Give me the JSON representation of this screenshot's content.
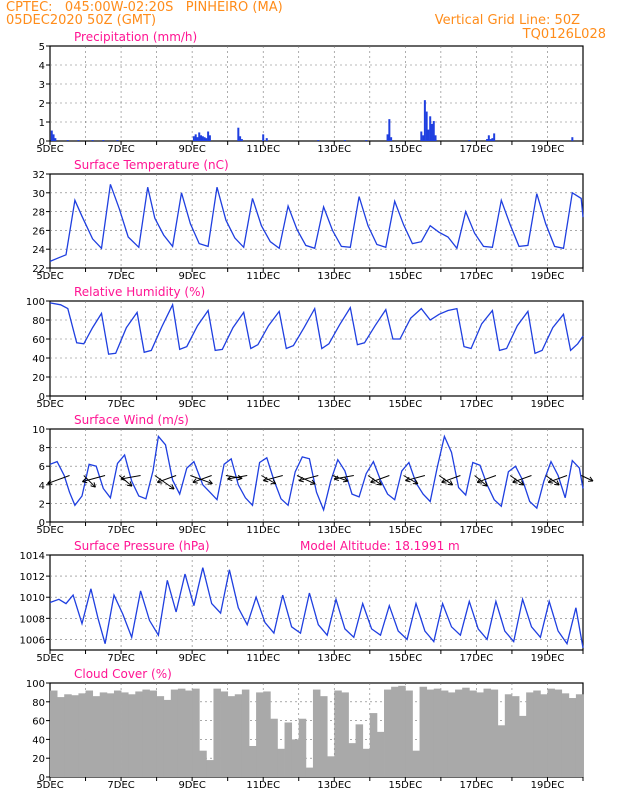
{
  "header": {
    "source_line": "CPTEC:   045:00W-02:20S   PINHEIRO (MA)",
    "date_line": "05DEC2020 50Z (GMT)",
    "grid_note": "Vertical Grid Line: 50Z",
    "run_code": "TQ0126L028"
  },
  "colors": {
    "header_text": "#ff8c1a",
    "panel_title": "#ff1493",
    "series": "#1f3fe0",
    "cloud": "#a9a9a9",
    "wind_arrow": "#000000"
  },
  "chart_data": [
    {
      "type": "bar",
      "title": "Precipitation (mm/h)",
      "ylim": [
        0,
        5
      ],
      "yticks": [
        0,
        1,
        2,
        3,
        4,
        5
      ],
      "xlim": [
        0,
        15
      ],
      "xticks": [
        "5DEC",
        "7DEC",
        "9DEC",
        "11DEC",
        "13DEC",
        "15DEC",
        "17DEC",
        "19DEC"
      ],
      "x": [
        0.05,
        0.1,
        0.15,
        0.5,
        0.8,
        1.2,
        1.5,
        1.9,
        4.05,
        4.1,
        4.15,
        4.2,
        4.25,
        4.3,
        4.35,
        4.4,
        4.45,
        4.5,
        5.3,
        5.35,
        5.4,
        6.0,
        6.1,
        7.55,
        8.3,
        8.9,
        9.5,
        9.55,
        9.6,
        10.45,
        10.5,
        10.55,
        10.6,
        10.65,
        10.7,
        10.75,
        10.8,
        10.85,
        11.8,
        12.3,
        12.35,
        12.4,
        12.45,
        12.5,
        14.7
      ],
      "values": [
        0.55,
        0.35,
        0.15,
        0.05,
        0.05,
        0.05,
        0.05,
        0.05,
        0.25,
        0.35,
        0.2,
        0.45,
        0.3,
        0.25,
        0.2,
        0.15,
        0.5,
        0.3,
        0.7,
        0.25,
        0.1,
        0.35,
        0.15,
        0.05,
        0.05,
        0.05,
        0.35,
        1.15,
        0.2,
        0.5,
        0.3,
        2.15,
        1.55,
        0.6,
        1.3,
        0.9,
        1.05,
        0.3,
        0.05,
        0.1,
        0.3,
        0.1,
        0.15,
        0.4,
        0.2
      ]
    },
    {
      "type": "line",
      "title": "Surface Temperature (nC)",
      "ylim": [
        22,
        32
      ],
      "yticks": [
        22,
        24,
        26,
        28,
        30,
        32
      ],
      "xlim": [
        0,
        15
      ],
      "xticks": [
        "5DEC",
        "7DEC",
        "9DEC",
        "11DEC",
        "13DEC",
        "15DEC",
        "17DEC",
        "19DEC"
      ],
      "x": [
        0,
        0.25,
        0.45,
        0.7,
        0.9,
        1.2,
        1.45,
        1.7,
        1.95,
        2.2,
        2.5,
        2.75,
        2.95,
        3.2,
        3.45,
        3.7,
        3.95,
        4.2,
        4.45,
        4.7,
        4.95,
        5.2,
        5.45,
        5.7,
        5.95,
        6.2,
        6.45,
        6.7,
        6.95,
        7.2,
        7.45,
        7.7,
        7.95,
        8.2,
        8.45,
        8.7,
        8.95,
        9.2,
        9.45,
        9.7,
        9.95,
        10.2,
        10.45,
        10.7,
        10.95,
        11.2,
        11.45,
        11.7,
        11.95,
        12.2,
        12.45,
        12.7,
        12.95,
        13.2,
        13.45,
        13.7,
        13.95,
        14.2,
        14.45,
        14.7,
        14.95,
        15
      ],
      "values": [
        22.7,
        23.1,
        23.4,
        29.2,
        27.5,
        25.1,
        24.1,
        30.9,
        28.3,
        25.3,
        24.2,
        30.6,
        27.3,
        25.5,
        24.3,
        30.0,
        26.7,
        24.6,
        24.3,
        30.6,
        27.1,
        25.2,
        24.2,
        29.4,
        26.5,
        24.8,
        24.1,
        28.6,
        26.1,
        24.4,
        24.1,
        28.5,
        26.0,
        24.3,
        24.2,
        29.6,
        26.5,
        24.5,
        24.2,
        29.1,
        26.6,
        24.6,
        24.8,
        26.5,
        25.8,
        25.3,
        24.1,
        28.0,
        25.7,
        24.3,
        24.2,
        29.2,
        26.6,
        24.3,
        24.4,
        29.9,
        26.7,
        24.3,
        24.1,
        30.0,
        29.4,
        27.4
      ]
    },
    {
      "type": "line",
      "title": "Relative Humidity (%)",
      "ylim": [
        0,
        100
      ],
      "yticks": [
        0,
        20,
        40,
        60,
        80,
        100
      ],
      "xlim": [
        0,
        15
      ],
      "xticks": [
        "5DEC",
        "7DEC",
        "9DEC",
        "11DEC",
        "13DEC",
        "15DEC",
        "17DEC",
        "19DEC"
      ],
      "x": [
        0,
        0.3,
        0.5,
        0.75,
        0.95,
        1.2,
        1.45,
        1.65,
        1.85,
        2.15,
        2.45,
        2.65,
        2.85,
        3.15,
        3.45,
        3.65,
        3.85,
        4.15,
        4.45,
        4.65,
        4.85,
        5.15,
        5.45,
        5.65,
        5.85,
        6.15,
        6.45,
        6.65,
        6.85,
        7.15,
        7.45,
        7.65,
        7.85,
        8.15,
        8.45,
        8.65,
        8.85,
        9.15,
        9.45,
        9.65,
        9.85,
        10.15,
        10.45,
        10.7,
        10.95,
        11.2,
        11.45,
        11.65,
        11.85,
        12.15,
        12.45,
        12.65,
        12.85,
        13.15,
        13.45,
        13.65,
        13.85,
        14.15,
        14.45,
        14.65,
        14.85,
        15
      ],
      "values": [
        98,
        96,
        92,
        56,
        55,
        72,
        87,
        44,
        45,
        72,
        88,
        46,
        48,
        73,
        96,
        49,
        52,
        74,
        90,
        48,
        49,
        72,
        88,
        50,
        54,
        74,
        89,
        50,
        53,
        72,
        92,
        50,
        55,
        75,
        93,
        54,
        56,
        74,
        91,
        60,
        60,
        82,
        92,
        80,
        86,
        90,
        92,
        52,
        50,
        76,
        90,
        48,
        50,
        74,
        89,
        45,
        48,
        72,
        86,
        48,
        55,
        63
      ]
    },
    {
      "type": "line",
      "title": "Surface Wind (m/s)",
      "ylim": [
        0,
        10
      ],
      "yticks": [
        0,
        2,
        4,
        6,
        8,
        10
      ],
      "xlim": [
        0,
        15
      ],
      "xticks": [
        "5DEC",
        "7DEC",
        "9DEC",
        "11DEC",
        "13DEC",
        "15DEC",
        "17DEC",
        "19DEC"
      ],
      "x": [
        0,
        0.2,
        0.4,
        0.55,
        0.7,
        0.9,
        1.1,
        1.3,
        1.5,
        1.7,
        1.9,
        2.1,
        2.3,
        2.5,
        2.7,
        2.9,
        3.05,
        3.25,
        3.45,
        3.65,
        3.85,
        4.05,
        4.3,
        4.5,
        4.7,
        4.9,
        5.1,
        5.3,
        5.5,
        5.7,
        5.9,
        6.1,
        6.3,
        6.5,
        6.7,
        6.9,
        7.1,
        7.3,
        7.5,
        7.7,
        7.9,
        8.1,
        8.3,
        8.5,
        8.7,
        8.9,
        9.1,
        9.3,
        9.5,
        9.7,
        9.9,
        10.1,
        10.3,
        10.5,
        10.7,
        10.9,
        11.1,
        11.3,
        11.5,
        11.7,
        11.9,
        12.1,
        12.3,
        12.5,
        12.7,
        12.9,
        13.1,
        13.3,
        13.5,
        13.7,
        13.9,
        14.1,
        14.3,
        14.5,
        14.7,
        14.9,
        15
      ],
      "values": [
        6.2,
        6.5,
        5.0,
        3.2,
        1.8,
        2.8,
        6.2,
        6.0,
        3.6,
        2.6,
        6.3,
        7.2,
        4.4,
        2.8,
        2.5,
        5.5,
        9.2,
        8.3,
        4.5,
        3.0,
        5.8,
        6.5,
        4.0,
        3.2,
        2.4,
        6.2,
        6.8,
        4.0,
        2.6,
        1.8,
        6.4,
        6.9,
        4.5,
        2.5,
        1.8,
        5.4,
        7.0,
        6.8,
        3.2,
        1.3,
        4.4,
        6.7,
        5.5,
        3.0,
        2.7,
        5.2,
        6.5,
        4.5,
        3.0,
        2.4,
        5.5,
        6.4,
        4.2,
        3.0,
        2.2,
        5.9,
        9.2,
        7.5,
        3.7,
        2.9,
        6.4,
        6.1,
        4.0,
        2.4,
        1.7,
        5.4,
        6.0,
        4.5,
        2.2,
        1.5,
        4.4,
        6.5,
        5.0,
        2.6,
        6.6,
        5.8,
        3.6
      ]
    },
    {
      "type": "line",
      "title": "Surface Pressure (hPa)",
      "annotation": "Model Altitude: 18.1991 m",
      "ylim": [
        1005,
        1014
      ],
      "yticks": [
        1006,
        1008,
        1010,
        1012,
        1014
      ],
      "xlim": [
        0,
        15
      ],
      "xticks": [
        "5DEC",
        "7DEC",
        "9DEC",
        "11DEC",
        "13DEC",
        "15DEC",
        "17DEC",
        "19DEC"
      ],
      "x": [
        0,
        0.25,
        0.45,
        0.65,
        0.9,
        1.15,
        1.35,
        1.55,
        1.8,
        2.05,
        2.3,
        2.55,
        2.8,
        3.05,
        3.3,
        3.55,
        3.8,
        4.05,
        4.3,
        4.55,
        4.8,
        5.05,
        5.3,
        5.55,
        5.8,
        6.05,
        6.3,
        6.55,
        6.8,
        7.05,
        7.3,
        7.55,
        7.8,
        8.05,
        8.3,
        8.55,
        8.8,
        9.05,
        9.3,
        9.55,
        9.8,
        10.05,
        10.3,
        10.55,
        10.8,
        11.05,
        11.3,
        11.55,
        11.8,
        12.05,
        12.3,
        12.55,
        12.8,
        13.05,
        13.3,
        13.55,
        13.8,
        14.05,
        14.3,
        14.55,
        14.8,
        15
      ],
      "values": [
        1009.5,
        1009.8,
        1009.4,
        1010.2,
        1007.5,
        1010.8,
        1008.0,
        1005.6,
        1010.2,
        1008.4,
        1006.2,
        1010.6,
        1007.8,
        1006.4,
        1011.6,
        1008.6,
        1012.2,
        1009.2,
        1012.8,
        1009.4,
        1008.5,
        1012.6,
        1009.0,
        1007.4,
        1010.0,
        1007.6,
        1006.6,
        1010.2,
        1007.2,
        1006.6,
        1010.4,
        1007.4,
        1006.4,
        1009.8,
        1007.0,
        1006.2,
        1009.4,
        1007.0,
        1006.4,
        1009.2,
        1006.8,
        1006.0,
        1009.4,
        1006.8,
        1005.8,
        1009.4,
        1007.2,
        1006.4,
        1009.6,
        1007.0,
        1006.0,
        1009.6,
        1006.8,
        1005.8,
        1009.8,
        1007.2,
        1006.2,
        1009.6,
        1006.8,
        1005.6,
        1009.0,
        1005.2
      ]
    },
    {
      "type": "bar",
      "title": "Cloud Cover (%)",
      "ylim": [
        0,
        100
      ],
      "yticks": [
        0,
        20,
        40,
        60,
        80,
        100
      ],
      "xlim": [
        0,
        15
      ],
      "xticks": [
        "5DEC",
        "7DEC",
        "9DEC",
        "11DEC",
        "13DEC",
        "15DEC",
        "17DEC",
        "19DEC"
      ],
      "x": [
        0.1,
        0.3,
        0.5,
        0.7,
        0.9,
        1.1,
        1.3,
        1.5,
        1.7,
        1.9,
        2.1,
        2.3,
        2.5,
        2.7,
        2.9,
        3.1,
        3.3,
        3.5,
        3.7,
        3.9,
        4.1,
        4.3,
        4.5,
        4.7,
        4.9,
        5.1,
        5.3,
        5.5,
        5.7,
        5.9,
        6.1,
        6.3,
        6.5,
        6.7,
        6.9,
        7.1,
        7.3,
        7.5,
        7.7,
        7.9,
        8.1,
        8.3,
        8.5,
        8.7,
        8.9,
        9.1,
        9.3,
        9.5,
        9.7,
        9.9,
        10.1,
        10.3,
        10.5,
        10.7,
        10.9,
        11.1,
        11.3,
        11.5,
        11.7,
        11.9,
        12.1,
        12.3,
        12.5,
        12.7,
        12.9,
        13.1,
        13.3,
        13.5,
        13.7,
        13.9,
        14.1,
        14.3,
        14.5,
        14.7,
        14.9
      ],
      "values": [
        92,
        85,
        88,
        87,
        89,
        92,
        86,
        90,
        89,
        92,
        90,
        88,
        91,
        93,
        92,
        86,
        82,
        93,
        94,
        92,
        94,
        28,
        18,
        94,
        91,
        86,
        88,
        93,
        33,
        90,
        91,
        62,
        30,
        58,
        40,
        62,
        10,
        93,
        86,
        22,
        92,
        90,
        36,
        56,
        30,
        68,
        48,
        93,
        96,
        97,
        92,
        28,
        96,
        93,
        94,
        92,
        90,
        93,
        95,
        92,
        90,
        94,
        93,
        55,
        88,
        86,
        65,
        90,
        92,
        88,
        94,
        93,
        89,
        84,
        88
      ]
    }
  ],
  "wind_arrows": {
    "x": [
      0.55,
      0.95,
      1.55,
      1.95,
      2.55,
      2.95,
      3.55,
      3.95,
      4.55,
      4.95,
      5.55,
      5.95,
      6.55,
      6.95,
      7.55,
      7.95,
      8.55,
      8.95,
      9.55,
      9.95,
      10.55,
      10.95,
      11.55,
      11.95,
      12.55,
      12.95,
      13.55,
      13.95,
      14.55,
      14.95
    ],
    "angle_deg": [
      160,
      45,
      165,
      40,
      170,
      35,
      160,
      20,
      160,
      10,
      170,
      30,
      165,
      25,
      165,
      20,
      170,
      35,
      160,
      30,
      165,
      35,
      160,
      40,
      160,
      35,
      160,
      35,
      160,
      25
    ],
    "speed": [
      5,
      3,
      5,
      3,
      4,
      5,
      4,
      5,
      4,
      3,
      4,
      3,
      4,
      4,
      4,
      3,
      4,
      3,
      4,
      3,
      4,
      3,
      4,
      3,
      4,
      3,
      4,
      3,
      4,
      2
    ]
  }
}
